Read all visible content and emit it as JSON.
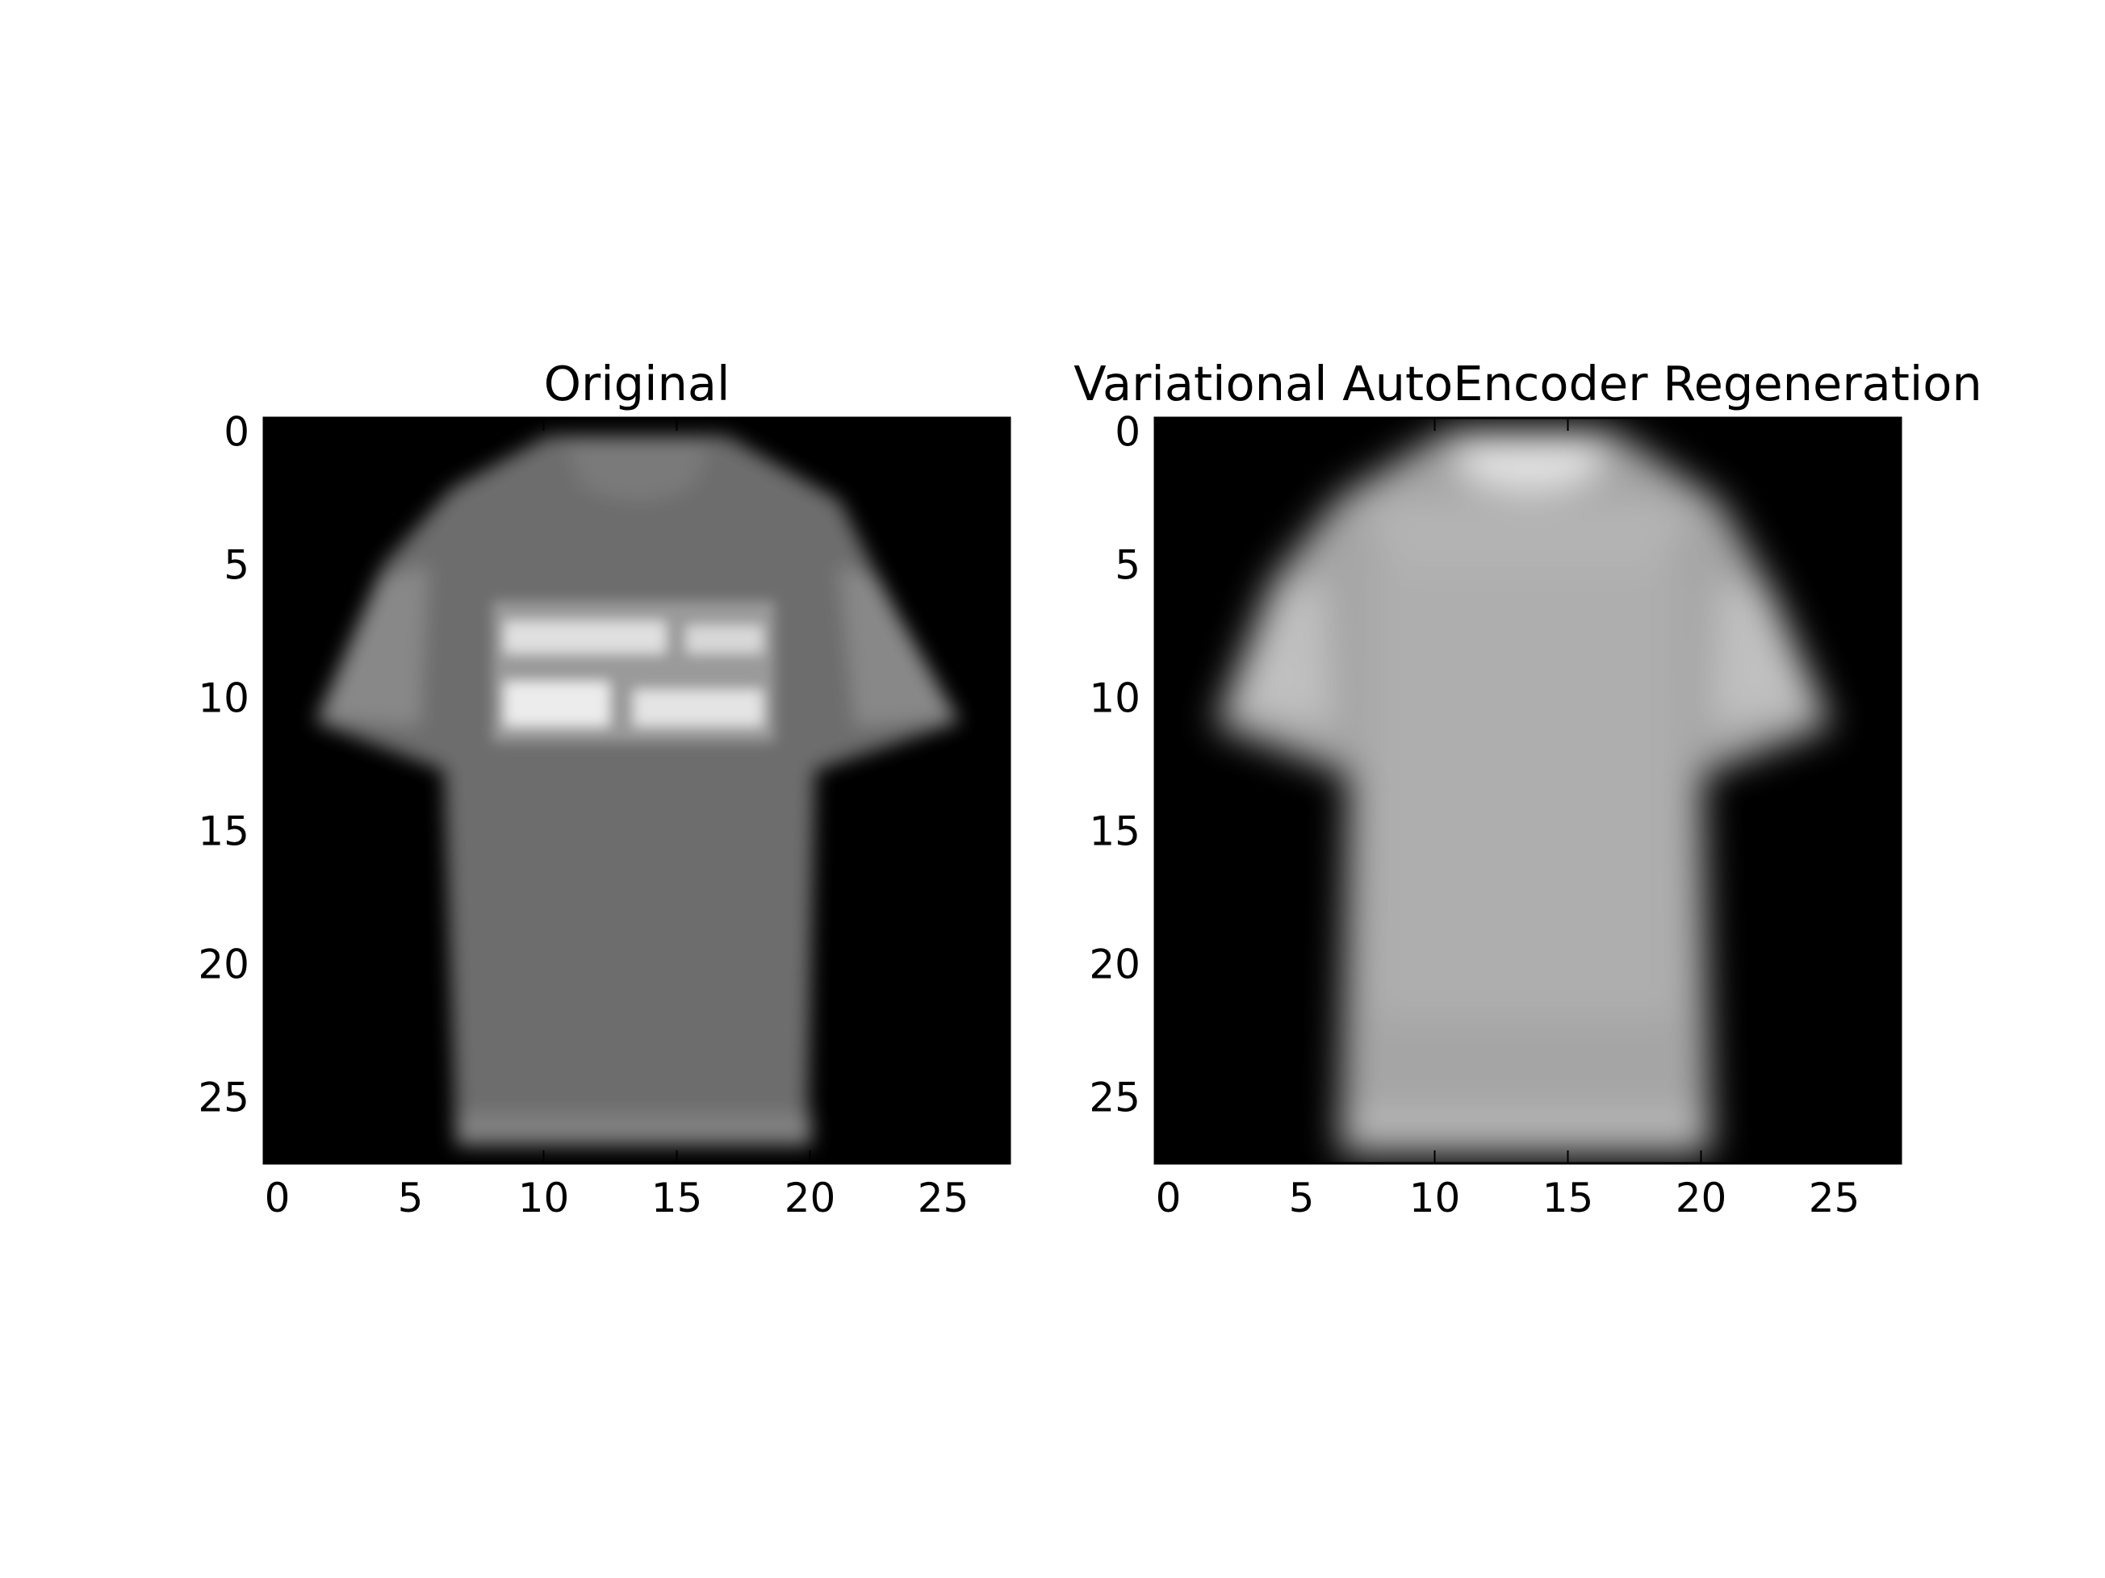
{
  "chart_data": [
    {
      "type": "heatmap",
      "title": "Original",
      "colormap": "gray",
      "image_shape": [
        28,
        28
      ],
      "xlim": [
        -0.5,
        27.5
      ],
      "ylim": [
        27.5,
        -0.5
      ],
      "xticks": [
        0,
        5,
        10,
        15,
        20,
        25
      ],
      "yticks": [
        0,
        5,
        10,
        15,
        20,
        25
      ],
      "xtick_labels": [
        "0",
        "5",
        "10",
        "15",
        "20",
        "25"
      ],
      "ytick_labels": [
        "0",
        "5",
        "10",
        "15",
        "20",
        "25"
      ],
      "xlabel": "",
      "ylabel": "",
      "grid": false,
      "content": "grayscale T-shirt image with a bright rectangular print across the chest"
    },
    {
      "type": "heatmap",
      "title": "Variational AutoEncoder Regeneration",
      "colormap": "gray",
      "image_shape": [
        28,
        28
      ],
      "xlim": [
        -0.5,
        27.5
      ],
      "ylim": [
        27.5,
        -0.5
      ],
      "xticks": [
        0,
        5,
        10,
        15,
        20,
        25
      ],
      "yticks": [
        0,
        5,
        10,
        15,
        20,
        25
      ],
      "xtick_labels": [
        "0",
        "5",
        "10",
        "15",
        "20",
        "25"
      ],
      "ytick_labels": [
        "0",
        "5",
        "10",
        "15",
        "20",
        "25"
      ],
      "xlabel": "",
      "ylabel": "",
      "grid": false,
      "content": "blurred grayscale T-shirt reconstruction without chest print"
    }
  ],
  "colors": {
    "background": "#ffffff",
    "image_background": "#000000",
    "axis": "#000000"
  }
}
